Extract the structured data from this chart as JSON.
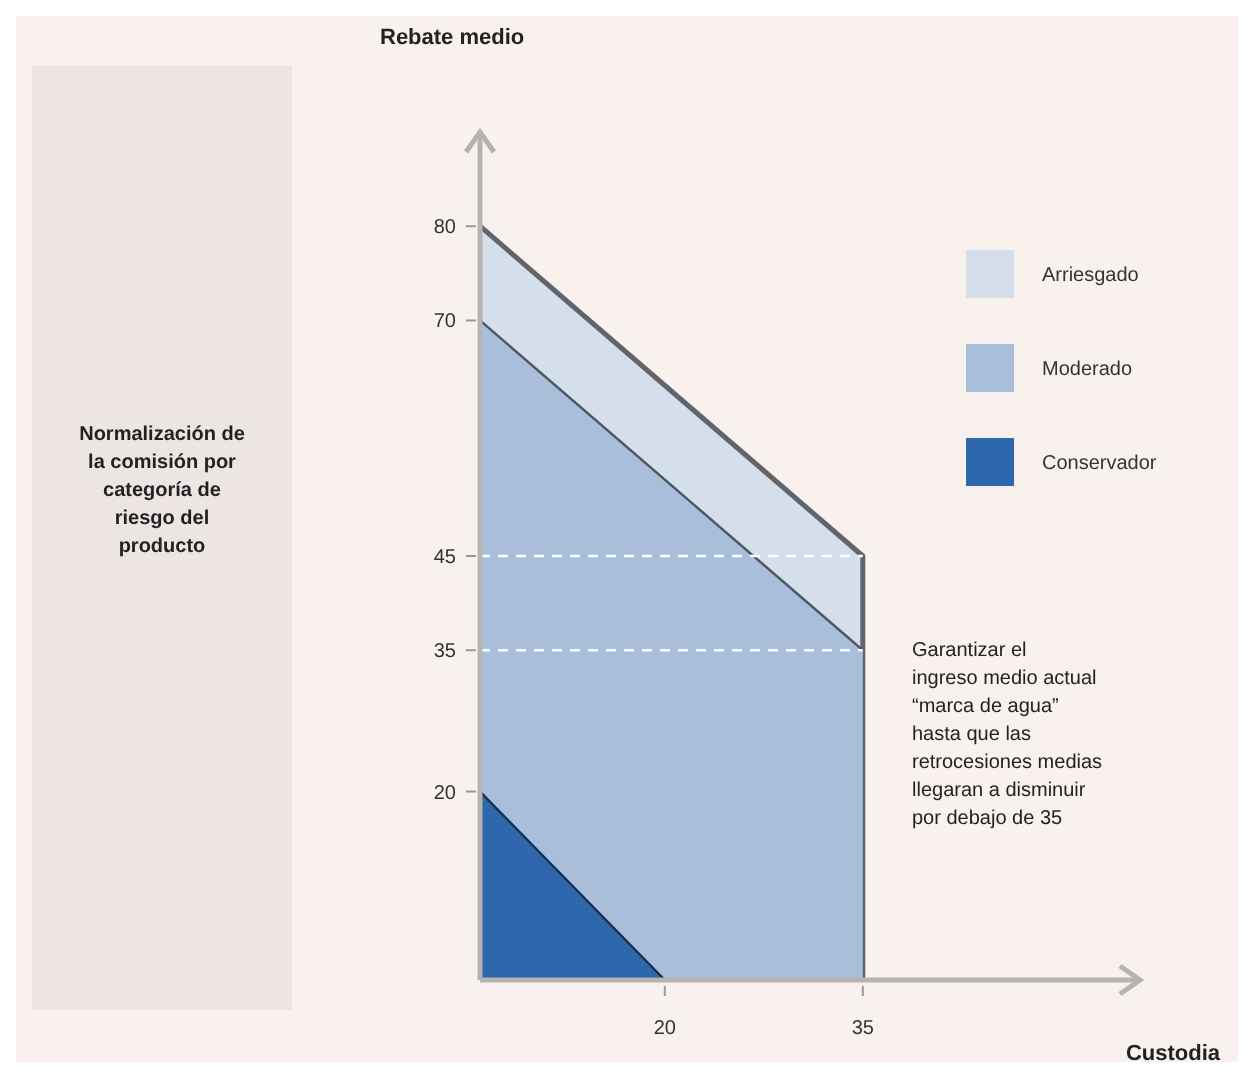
{
  "chart_data": {
    "type": "area",
    "xlabel": "Custodia",
    "ylabel": "Rebate medio",
    "xlim": [
      6,
      56
    ],
    "xticks": [
      20,
      35
    ],
    "ylim": [
      0,
      90
    ],
    "yticks": [
      20,
      35,
      45,
      70,
      80
    ],
    "series": [
      {
        "name": "Arriesgado",
        "color": "#d5deeb",
        "x": [
          6,
          35,
          35
        ],
        "values": [
          80,
          45,
          0
        ]
      },
      {
        "name": "Moderado",
        "color": "#a9bedb",
        "x": [
          6,
          35
        ],
        "values": [
          70,
          35
        ]
      },
      {
        "name": "Conservador",
        "color": "#2f67ad",
        "x": [
          6,
          20
        ],
        "values": [
          20,
          0
        ]
      }
    ],
    "ref_lines": [
      {
        "axis": "y",
        "value": 45,
        "color": "#ffffff",
        "line_style": "dashed"
      },
      {
        "axis": "y",
        "value": 35,
        "color": "#ffffff",
        "line_style": "dashed"
      }
    ],
    "legend": "top right",
    "annotations": [
      "Normalización de la comisión por categoría de riesgo del producto",
      "Garantizar el ingreso medio actual “marca de agua” hasta que las retrocesiones medias llegaran a disminuir por debajo de 35"
    ]
  }
}
